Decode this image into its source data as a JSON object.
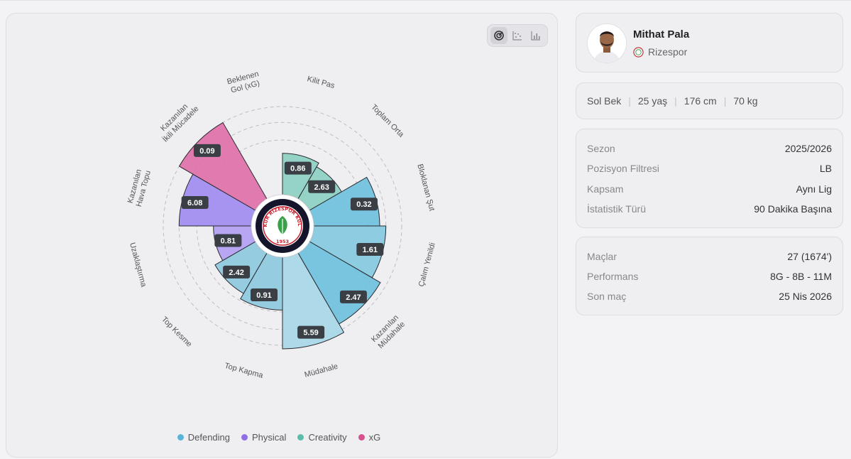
{
  "chart": {
    "legend": [
      {
        "label": "Defending",
        "color": "#5bb3d6"
      },
      {
        "label": "Physical",
        "color": "#8f6fe6"
      },
      {
        "label": "Creativity",
        "color": "#5cbcaa"
      },
      {
        "label": "xG",
        "color": "#d8508f"
      }
    ],
    "view_toggle": [
      "radial-chart-icon",
      "scatter-chart-icon",
      "bar-chart-icon"
    ],
    "center_badge_text": [
      "ÇAYKUR RİZESPOR KULÜBÜ",
      "1953"
    ]
  },
  "chart_data": {
    "type": "polar-area",
    "segments": [
      {
        "label": "Kilit Pas",
        "value": 0.86,
        "group": "Creativity",
        "fill": "#8ed0c3",
        "level": 0.47
      },
      {
        "label": "Toplam Orta",
        "value": 2.63,
        "group": "Creativity",
        "fill": "#8ed0c3",
        "level": 0.42
      },
      {
        "label": "Bloklanan Şut",
        "value": 0.32,
        "group": "Defending",
        "fill": "#6fc0dc",
        "level": 0.75
      },
      {
        "label": "Çalım Yenildi",
        "value": 1.61,
        "group": "Defending",
        "fill": "#86c9e0",
        "level": 0.82
      },
      {
        "label": "Kazanılan Müdahale",
        "value": 2.47,
        "group": "Defending",
        "fill": "#6fc0dc",
        "level": 0.93
      },
      {
        "label": "Müdahale",
        "value": 5.59,
        "group": "Defending",
        "fill": "#a8d7e8",
        "level": 1.04
      },
      {
        "label": "Top Kapma",
        "value": 0.91,
        "group": "Defending",
        "fill": "#8ec9de",
        "level": 0.6
      },
      {
        "label": "Top Kesme",
        "value": 2.42,
        "group": "Defending",
        "fill": "#8ec9de",
        "level": 0.53
      },
      {
        "label": "Uzaklaştırma",
        "value": 0.81,
        "group": "Physical",
        "fill": "#b39ff2",
        "level": 0.43
      },
      {
        "label": "Kazanılan Hava Topu",
        "value": 6.08,
        "group": "Physical",
        "fill": "#a08cf0",
        "level": 0.82
      },
      {
        "label": "Kazanılan İkili Mücadele",
        "value": 0.09,
        "group": "xG",
        "fill": "#e070a8",
        "level": 1.0
      },
      {
        "label": "Beklenen Gol (xG)",
        "value": null,
        "group": "xG",
        "fill": "#e070a8",
        "level": 0
      }
    ],
    "axis_labels": [
      "Kilit Pas",
      "Toplam Orta",
      "Bloklanan Şut",
      "Çalım Yenildi",
      "Kazanılan\nMüdahale",
      "Müdahale",
      "Top Kapma",
      "Top Kesme",
      "Uzaklaştırma",
      "Kazanılan\nHava Topu",
      "Kazanılan\nİkili Mücadele",
      "Beklenen\nGol (xG)"
    ],
    "value_labels": [
      "0.86",
      "2.63",
      "0.32",
      "1.61",
      "2.47",
      "5.59",
      "0.91",
      "2.42",
      "0.81",
      "6.08",
      "0.09"
    ],
    "grid": true
  },
  "profile": {
    "name": "Mithat Pala",
    "club": "Rizespor",
    "club_icon": "club-crest-icon",
    "avatar": "player-avatar"
  },
  "bio": {
    "position": "Sol Bek",
    "age": "25 yaş",
    "height": "176 cm",
    "weight": "70 kg"
  },
  "settings": [
    {
      "label": "Sezon",
      "value": "2025/2026"
    },
    {
      "label": "Pozisyon Filtresi",
      "value": "LB"
    },
    {
      "label": "Kapsam",
      "value": "Aynı Lig"
    },
    {
      "label": "İstatistik Türü",
      "value": "90 Dakika Başına"
    }
  ],
  "stats": [
    {
      "label": "Maçlar",
      "value": "27 (1674')"
    },
    {
      "label": "Performans",
      "value": "8G - 8B - 11M"
    },
    {
      "label": "Son maç",
      "value": "25 Nis 2026"
    }
  ]
}
